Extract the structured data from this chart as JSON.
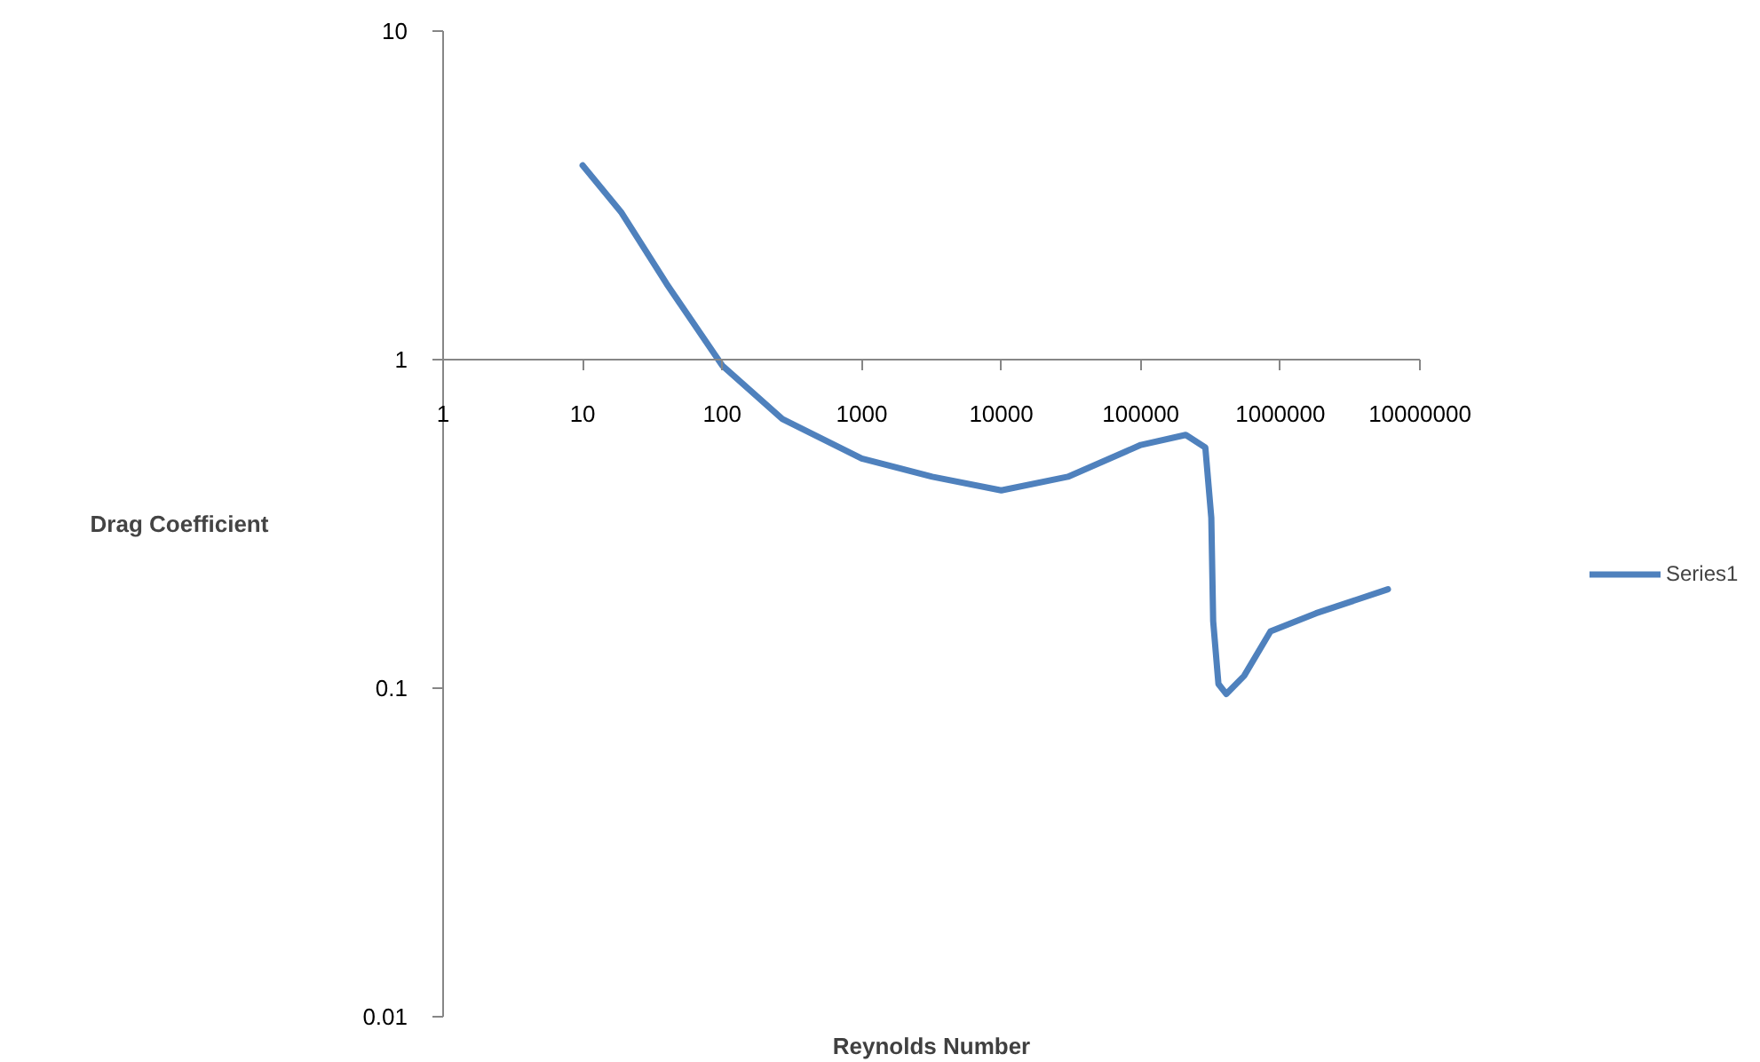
{
  "chart_data": {
    "type": "line",
    "xlabel": "Reynolds Number",
    "ylabel": "Drag Coefficient",
    "log": "xy",
    "grid": false,
    "legend": "right",
    "marker": "none",
    "line_style": "solid",
    "xlim": [
      1,
      10000000
    ],
    "ylim": [
      0.01,
      10
    ],
    "xticks": [
      1,
      10,
      100,
      1000,
      10000,
      100000,
      1000000,
      10000000
    ],
    "yticks": [
      0.01,
      0.1,
      1,
      10
    ],
    "x": [
      10,
      19,
      40,
      100,
      270,
      1000,
      3200,
      10000,
      30000,
      100000,
      210000,
      290000,
      320000,
      330000,
      360000,
      410000,
      550000,
      850000,
      1800000,
      5900000
    ],
    "series": [
      {
        "name": "Series1",
        "color": "#4f81bd",
        "values": [
          3.9,
          2.8,
          1.7,
          0.96,
          0.66,
          0.5,
          0.44,
          0.4,
          0.44,
          0.55,
          0.59,
          0.54,
          0.33,
          0.16,
          0.103,
          0.096,
          0.109,
          0.149,
          0.169,
          0.2
        ]
      }
    ]
  }
}
